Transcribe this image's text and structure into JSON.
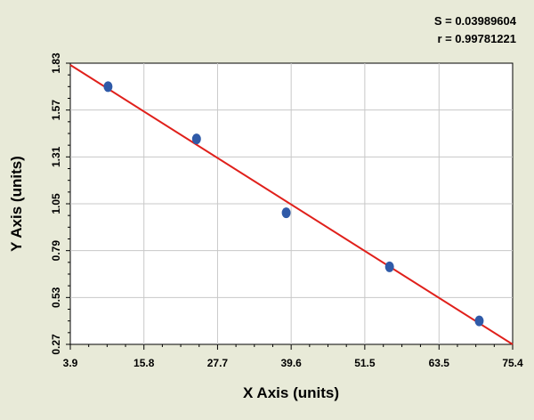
{
  "chart_data": {
    "type": "scatter",
    "xlabel": "X Axis (units)",
    "ylabel": "Y Axis (units)",
    "xlim": [
      3.9,
      75.4
    ],
    "ylim": [
      0.27,
      1.83
    ],
    "xticks": [
      "3.9",
      "15.8",
      "27.7",
      "39.6",
      "51.5",
      "63.5",
      "75.4"
    ],
    "yticks": [
      "0.27",
      "0.53",
      "0.79",
      "1.05",
      "1.31",
      "1.57",
      "1.83"
    ],
    "grid": true,
    "points": [
      {
        "x": 10.0,
        "y": 1.7
      },
      {
        "x": 24.3,
        "y": 1.41
      },
      {
        "x": 38.8,
        "y": 1.0
      },
      {
        "x": 55.5,
        "y": 0.7
      },
      {
        "x": 70.0,
        "y": 0.4
      }
    ],
    "fit_line": {
      "x": [
        3.9,
        75.4
      ],
      "y": [
        1.82,
        0.27
      ],
      "color": "#e0201b"
    },
    "point_color": "#2f5aa8",
    "background_color": "#e8ead8",
    "stats": {
      "s": "S = 0.03989604",
      "r": "r = 0.99781221"
    }
  }
}
